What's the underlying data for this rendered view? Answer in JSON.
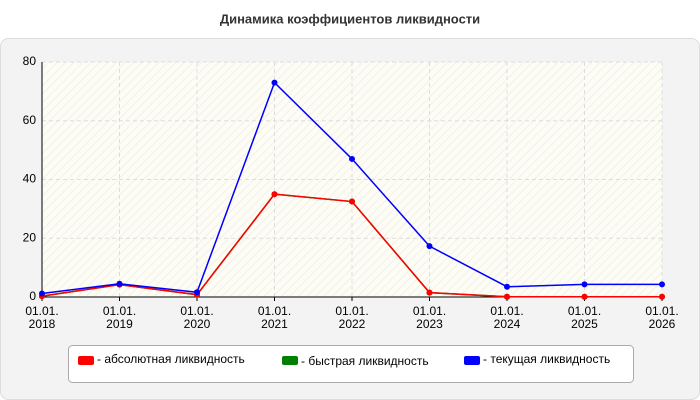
{
  "chart_data": {
    "type": "line",
    "title": "Динамика коэффициентов ликвидности",
    "categories": [
      "01.01.\n2018",
      "01.01.\n2019",
      "01.01.\n2020",
      "01.01.\n2021",
      "01.01.\n2022",
      "01.01.\n2023",
      "01.01.\n2024",
      "01.01.\n2025",
      "01.01.\n2026"
    ],
    "series": [
      {
        "name": "- абсолютная ликвидность",
        "color": "#ff0000",
        "values": [
          0.3,
          4.2,
          0.8,
          35,
          32.5,
          1.5,
          0.1,
          0.1,
          0.1
        ]
      },
      {
        "name": "- быстрая ликвидность",
        "color": "#008000",
        "values": [
          0.3,
          4.2,
          0.8,
          35,
          32.5,
          1.5,
          0.1,
          0.1,
          0.1
        ]
      },
      {
        "name": "- текущая ликвидность",
        "color": "#0000ff",
        "values": [
          1.2,
          4.5,
          1.6,
          73,
          47,
          17.3,
          3.5,
          4.3,
          4.3
        ]
      }
    ],
    "ylim": [
      0,
      80
    ],
    "yticks": [
      0,
      20,
      40,
      60,
      80
    ],
    "grid": true
  }
}
